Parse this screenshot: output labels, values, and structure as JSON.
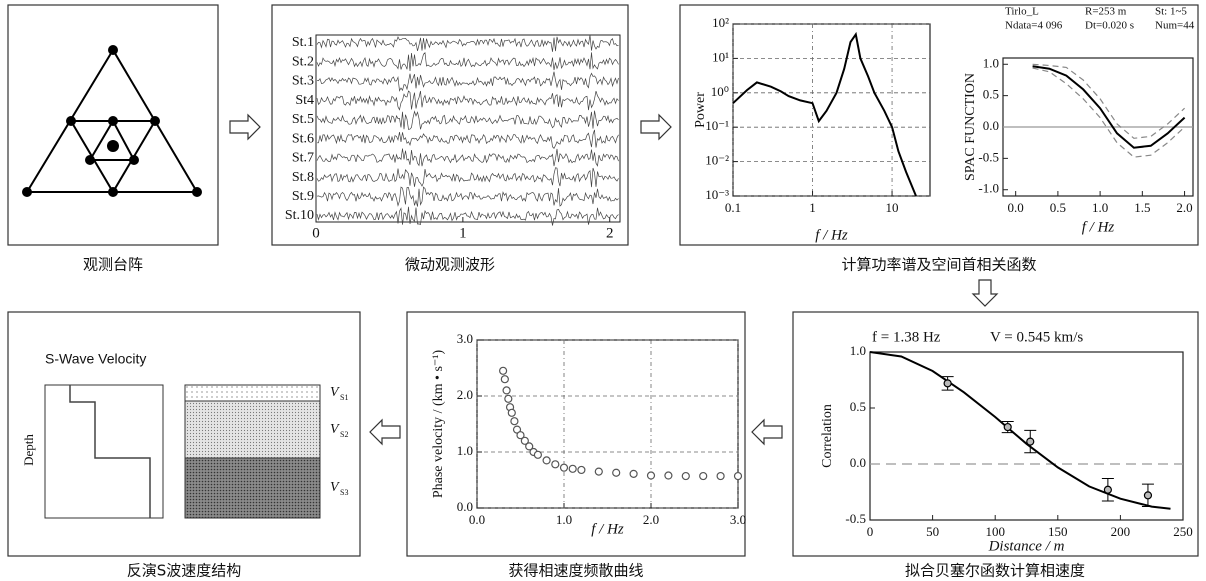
{
  "array_panel": {
    "caption": "观测台阵"
  },
  "waveform_panel": {
    "caption": "微动观测波形",
    "chart": {
      "type": "waveform",
      "stations": [
        "St.1",
        "St.2",
        "St.3",
        "St4",
        "St.5",
        "St.6",
        "St.7",
        "St.8",
        "St.9",
        "St.10"
      ],
      "xlim": [
        0,
        2.07
      ],
      "xticks": [
        0,
        1,
        2
      ]
    }
  },
  "spectrum_panel": {
    "caption": "计算功率谱及空间首相关函数",
    "power": {
      "type": "line",
      "x_label": "f / Hz",
      "y_label": "Power",
      "xscale": "log",
      "yscale": "log",
      "xlim": [
        0.1,
        30
      ],
      "ylim": [
        0.001,
        100
      ],
      "xticks": [
        0.1,
        1,
        10
      ],
      "yticks": [
        {
          "value": 0.001,
          "label": "10⁻³"
        },
        {
          "value": 0.01,
          "label": "10⁻²"
        },
        {
          "value": 0.1,
          "label": "10⁻¹"
        },
        {
          "value": 1,
          "label": "10⁰"
        },
        {
          "value": 10,
          "label": "10¹"
        },
        {
          "value": 100,
          "label": "10²"
        }
      ],
      "grid": true,
      "series": [
        {
          "kind": "line",
          "style": "solid",
          "color": "#000000",
          "x": [
            0.1,
            0.15,
            0.2,
            0.3,
            0.4,
            0.5,
            0.7,
            1,
            1.2,
            1.5,
            2,
            2.5,
            3,
            3.5,
            4,
            5,
            6,
            8,
            10,
            12,
            15,
            20
          ],
          "values": [
            0.5,
            1.2,
            2,
            1.5,
            1.1,
            0.8,
            0.6,
            0.5,
            0.15,
            0.3,
            1,
            5,
            30,
            50,
            10,
            3,
            1,
            0.3,
            0.1,
            0.02,
            0.005,
            0.001
          ]
        }
      ]
    },
    "spac": {
      "type": "line",
      "x_label": "f / Hz",
      "y_label": "SPAC FUNCTION",
      "header": [
        "Tirlo_L",
        "R=253 m",
        "St: 1~5",
        "Ndata=4 096",
        "Dt=0.020 s",
        "Num=44"
      ],
      "xlim": [
        -0.15,
        2.1
      ],
      "ylim": [
        -1.1,
        1.1
      ],
      "xticks": [
        {
          "value": 0,
          "label": "0.0"
        },
        0.5,
        {
          "value": 1,
          "label": "1.0"
        },
        1.5,
        {
          "value": 2,
          "label": "2.0"
        }
      ],
      "yticks": [
        {
          "value": -1,
          "label": "-1.0"
        },
        -0.5,
        {
          "value": 0,
          "label": "0.0"
        },
        0.5,
        {
          "value": 1,
          "label": "1.0"
        }
      ],
      "reference_line": 0,
      "series": [
        {
          "kind": "line",
          "style": "solid",
          "color": "#000000",
          "x": [
            0.2,
            0.4,
            0.6,
            0.8,
            1.0,
            1.2,
            1.4,
            1.6,
            1.8,
            2.0
          ],
          "values": [
            0.97,
            0.93,
            0.82,
            0.6,
            0.3,
            -0.1,
            -0.33,
            -0.3,
            -0.1,
            0.15
          ]
        },
        {
          "kind": "line",
          "style": "dashed",
          "color": "#888888",
          "x": [
            0.2,
            0.4,
            0.6,
            0.8,
            1.0,
            1.2,
            1.4,
            1.6,
            1.8,
            2.0
          ],
          "values": [
            1.0,
            0.98,
            0.95,
            0.75,
            0.45,
            0.05,
            -0.18,
            -0.15,
            0.05,
            0.3
          ]
        },
        {
          "kind": "line",
          "style": "dashed",
          "color": "#888888",
          "x": [
            0.2,
            0.4,
            0.6,
            0.8,
            1.0,
            1.2,
            1.4,
            1.6,
            1.8,
            2.0
          ],
          "values": [
            0.94,
            0.88,
            0.69,
            0.45,
            0.15,
            -0.25,
            -0.48,
            -0.45,
            -0.25,
            0.0
          ]
        }
      ]
    }
  },
  "fit_panel": {
    "caption": "拟合贝塞尔函数计算相速度",
    "chart": {
      "type": "scatter",
      "title": [
        "f = 1.38 Hz",
        "V = 0.545 km/s"
      ],
      "x_label": "Distance / m",
      "y_label": "Correlation",
      "xlim": [
        0,
        250
      ],
      "ylim": [
        -0.5,
        1.0
      ],
      "xticks": [
        0,
        50,
        100,
        150,
        200,
        250
      ],
      "yticks": [
        -0.5,
        {
          "value": 0,
          "label": "0.0"
        },
        0.5,
        {
          "value": 1,
          "label": "1.0"
        }
      ],
      "reference_line": 0,
      "series": [
        {
          "kind": "line",
          "style": "solid",
          "color": "#000000",
          "x": [
            0,
            25,
            50,
            75,
            100,
            125,
            150,
            175,
            200,
            225,
            240
          ],
          "values": [
            1,
            0.96,
            0.83,
            0.64,
            0.42,
            0.18,
            -0.03,
            -0.2,
            -0.31,
            -0.38,
            -0.4
          ]
        },
        {
          "kind": "points",
          "color": "#000000",
          "x": [
            62,
            110,
            128,
            190,
            222
          ],
          "values": [
            0.72,
            0.33,
            0.2,
            -0.23,
            -0.28
          ],
          "err": [
            0.06,
            0.05,
            0.1,
            0.1,
            0.1
          ]
        }
      ]
    }
  },
  "dispersion_panel": {
    "caption": "获得相速度频散曲线",
    "chart": {
      "type": "scatter",
      "x_label": "f / Hz",
      "y_label": "Phase velocity / (km • s⁻¹)",
      "xlim": [
        0,
        3
      ],
      "ylim": [
        0,
        3
      ],
      "xticks": [
        {
          "value": 0,
          "label": "0.0"
        },
        {
          "value": 1,
          "label": "1.0"
        },
        {
          "value": 2,
          "label": "2.0"
        },
        {
          "value": 3,
          "label": "3.0"
        }
      ],
      "yticks": [
        {
          "value": 0,
          "label": "0.0"
        },
        {
          "value": 1,
          "label": "1.0"
        },
        {
          "value": 2,
          "label": "2.0"
        },
        {
          "value": 3,
          "label": "3.0"
        }
      ],
      "grid": true,
      "series": [
        {
          "kind": "points",
          "color": "#555555",
          "x": [
            0.3,
            0.32,
            0.34,
            0.36,
            0.38,
            0.4,
            0.43,
            0.46,
            0.5,
            0.55,
            0.6,
            0.65,
            0.7,
            0.8,
            0.9,
            1.0,
            1.1,
            1.2,
            1.4,
            1.6,
            1.8,
            2.0,
            2.2,
            2.4,
            2.6,
            2.8,
            3.0
          ],
          "values": [
            2.45,
            2.3,
            2.1,
            1.95,
            1.8,
            1.7,
            1.55,
            1.4,
            1.3,
            1.2,
            1.1,
            1.0,
            0.95,
            0.85,
            0.78,
            0.72,
            0.7,
            0.68,
            0.65,
            0.63,
            0.61,
            0.58,
            0.58,
            0.57,
            0.57,
            0.57,
            0.57
          ]
        }
      ]
    }
  },
  "velocity_panel": {
    "caption": "反演S波速度结构",
    "title": "S-Wave Velocity",
    "y_label": "Depth",
    "layers": [
      {
        "symbol": "V",
        "subscript": "S1"
      },
      {
        "symbol": "V",
        "subscript": "S2"
      },
      {
        "symbol": "V",
        "subscript": "S3"
      }
    ]
  }
}
